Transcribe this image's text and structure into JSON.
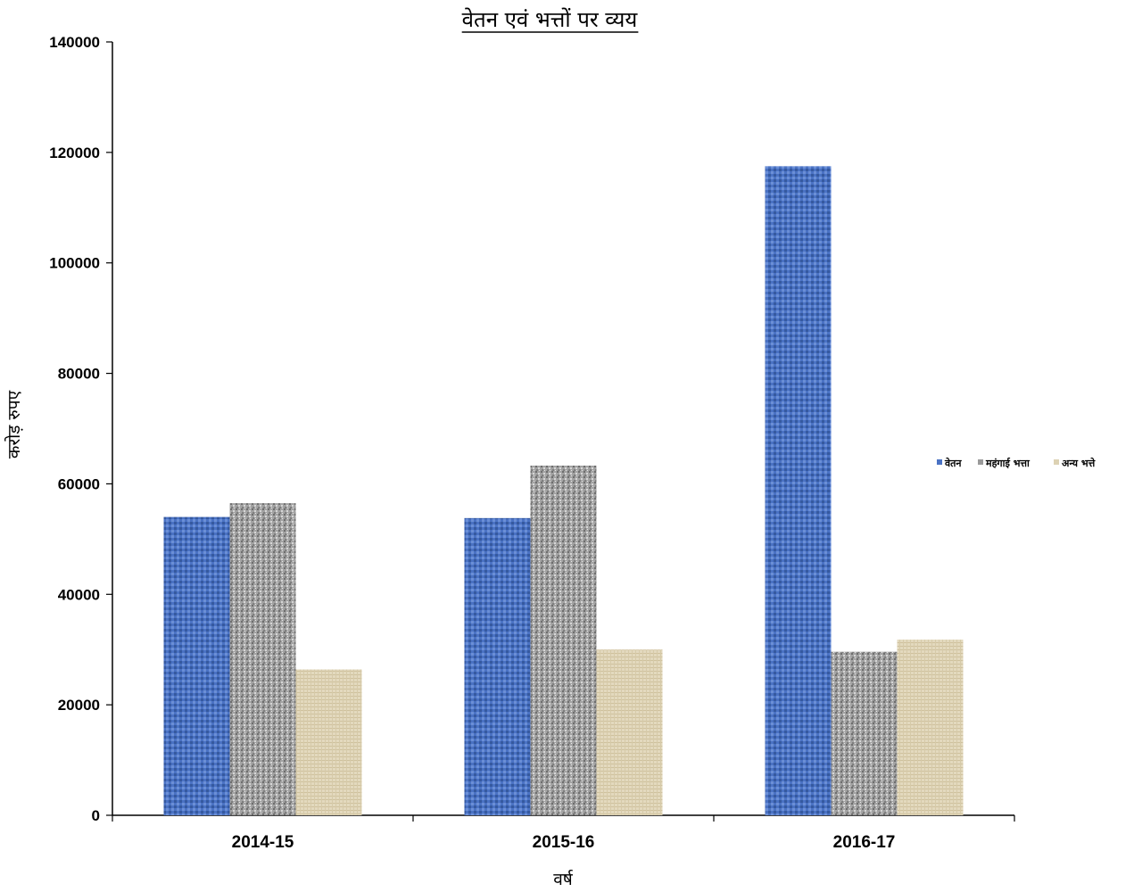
{
  "chart_data": {
    "type": "bar",
    "title": "वेतन एवं भत्तों पर व्यय",
    "xlabel": "वर्ष",
    "ylabel": "करोड़ रुपए",
    "categories": [
      "2014-15",
      "2015-16",
      "2016-17"
    ],
    "series": [
      {
        "name": "वेतन",
        "values": [
          54000,
          53800,
          117500
        ],
        "color": "#4a72c4"
      },
      {
        "name": "महंगाई भत्ता",
        "values": [
          56500,
          63300,
          29600
        ],
        "color": "#9a9a9a"
      },
      {
        "name": "अन्य भत्ते",
        "values": [
          26400,
          30000,
          31800
        ],
        "color": "#ddd2b4"
      }
    ],
    "ylim": [
      0,
      140000
    ],
    "yticks": [
      "0",
      "20000",
      "40000",
      "60000",
      "80000",
      "100000",
      "120000",
      "140000"
    ],
    "grid": false,
    "legend_position": "right"
  }
}
